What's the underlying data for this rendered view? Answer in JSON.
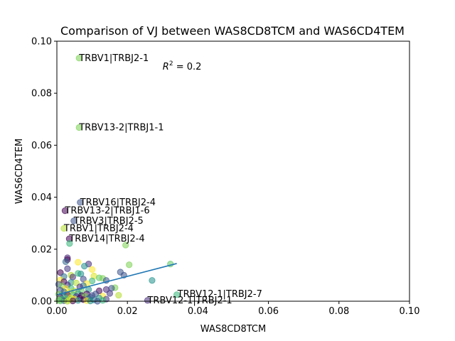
{
  "chart_data": {
    "type": "scatter",
    "title": "Comparison of VJ between WAS8CD8TCM and WAS6CD4TEM",
    "xlabel": "WAS8CD8TCM",
    "ylabel": "WAS6CD4TEM",
    "xlim": [
      0.0,
      0.1
    ],
    "ylim": [
      0.0,
      0.1
    ],
    "x_ticks": [
      "0.00",
      "0.02",
      "0.04",
      "0.06",
      "0.08",
      "0.10"
    ],
    "y_ticks": [
      "0.00",
      "0.02",
      "0.04",
      "0.06",
      "0.08",
      "0.10"
    ],
    "grid": false,
    "r2_text": "= 0.2",
    "r2_symbol": "R",
    "r2_exp": "2",
    "fit_line": {
      "x": [
        0.0,
        0.034
      ],
      "y": [
        0.0025,
        0.0145
      ],
      "color": "#1f77b4"
    },
    "annotations": [
      {
        "text": "TRBV1|TRBJ2-1",
        "x": 0.0063,
        "y": 0.0935
      },
      {
        "text": "TRBV13-2|TRBJ1-1",
        "x": 0.0063,
        "y": 0.0668
      },
      {
        "text": "TRBV16|TRBJ2-4",
        "x": 0.0066,
        "y": 0.038
      },
      {
        "text": "TRBV13-2|TRBJ1-6",
        "x": 0.0023,
        "y": 0.0348
      },
      {
        "text": "TRBV3|TRBJ2-5",
        "x": 0.0048,
        "y": 0.0309
      },
      {
        "text": "TRBV1|TRBJ2-4",
        "x": 0.002,
        "y": 0.028
      },
      {
        "text": "TRBV14|TRBJ2-4",
        "x": 0.0035,
        "y": 0.024
      },
      {
        "text": "TRBV12-1|TRBJ2-7",
        "x": 0.0342,
        "y": 0.0028
      },
      {
        "text": "TRBV12-1|TRBJ2-1",
        "x": 0.0257,
        "y": 0.0003
      }
    ],
    "r2_position": {
      "x": 0.03,
      "y": 0.0905
    },
    "points": [
      {
        "x": 0.0063,
        "y": 0.0935,
        "c": "#7ad151"
      },
      {
        "x": 0.0063,
        "y": 0.0668,
        "c": "#7ad151"
      },
      {
        "x": 0.0066,
        "y": 0.038,
        "c": "#3b528b"
      },
      {
        "x": 0.0023,
        "y": 0.0348,
        "c": "#440154"
      },
      {
        "x": 0.0048,
        "y": 0.0309,
        "c": "#3b528b"
      },
      {
        "x": 0.002,
        "y": 0.028,
        "c": "#b5de2b"
      },
      {
        "x": 0.0035,
        "y": 0.024,
        "c": "#440154"
      },
      {
        "x": 0.0036,
        "y": 0.0222,
        "c": "#35b779"
      },
      {
        "x": 0.0195,
        "y": 0.0216,
        "c": "#7ad151"
      },
      {
        "x": 0.003,
        "y": 0.0167,
        "c": "#482878"
      },
      {
        "x": 0.003,
        "y": 0.016,
        "c": "#440154"
      },
      {
        "x": 0.0025,
        "y": 0.0152,
        "c": "#31688e"
      },
      {
        "x": 0.006,
        "y": 0.015,
        "c": "#fde725"
      },
      {
        "x": 0.009,
        "y": 0.0143,
        "c": "#472d7b"
      },
      {
        "x": 0.0078,
        "y": 0.0135,
        "c": "#21918c"
      },
      {
        "x": 0.0205,
        "y": 0.014,
        "c": "#7ad151"
      },
      {
        "x": 0.0322,
        "y": 0.0143,
        "c": "#5ec962"
      },
      {
        "x": 0.003,
        "y": 0.0125,
        "c": "#443983"
      },
      {
        "x": 0.01,
        "y": 0.0122,
        "c": "#fde725"
      },
      {
        "x": 0.018,
        "y": 0.0112,
        "c": "#3b528b"
      },
      {
        "x": 0.001,
        "y": 0.011,
        "c": "#440154"
      },
      {
        "x": 0.006,
        "y": 0.0107,
        "c": "#35b779"
      },
      {
        "x": 0.0068,
        "y": 0.0105,
        "c": "#21918c"
      },
      {
        "x": 0.004,
        "y": 0.01,
        "c": "#b5de2b"
      },
      {
        "x": 0.019,
        "y": 0.01,
        "c": "#3b528b"
      },
      {
        "x": 0.0105,
        "y": 0.0097,
        "c": "#dde318"
      },
      {
        "x": 0.002,
        "y": 0.0095,
        "c": "#2c728e"
      },
      {
        "x": 0.0045,
        "y": 0.0093,
        "c": "#472c7a"
      },
      {
        "x": 0.012,
        "y": 0.009,
        "c": "#5ec962"
      },
      {
        "x": 0.013,
        "y": 0.0088,
        "c": "#7ad151"
      },
      {
        "x": 0.0075,
        "y": 0.0085,
        "c": "#3e4989"
      },
      {
        "x": 0.001,
        "y": 0.0082,
        "c": "#fde725"
      },
      {
        "x": 0.014,
        "y": 0.008,
        "c": "#3b528b"
      },
      {
        "x": 0.027,
        "y": 0.008,
        "c": "#21918c"
      },
      {
        "x": 0.01,
        "y": 0.0078,
        "c": "#35b779"
      },
      {
        "x": 0.002,
        "y": 0.0075,
        "c": "#440154"
      },
      {
        "x": 0.004,
        "y": 0.0072,
        "c": "#21918c"
      },
      {
        "x": 0.0055,
        "y": 0.007,
        "c": "#b5de2b"
      },
      {
        "x": 0.0085,
        "y": 0.0068,
        "c": "#fde725"
      },
      {
        "x": 0.0005,
        "y": 0.0065,
        "c": "#3b528b"
      },
      {
        "x": 0.003,
        "y": 0.0063,
        "c": "#482878"
      },
      {
        "x": 0.0075,
        "y": 0.006,
        "c": "#2c728e"
      },
      {
        "x": 0.0015,
        "y": 0.0058,
        "c": "#7ad151"
      },
      {
        "x": 0.0065,
        "y": 0.0055,
        "c": "#472d7b"
      },
      {
        "x": 0.0165,
        "y": 0.0052,
        "c": "#7ad151"
      },
      {
        "x": 0.0155,
        "y": 0.005,
        "c": "#3b528b"
      },
      {
        "x": 0.004,
        "y": 0.005,
        "c": "#35b779"
      },
      {
        "x": 0.0025,
        "y": 0.0048,
        "c": "#fde725"
      },
      {
        "x": 0.014,
        "y": 0.0045,
        "c": "#482878"
      },
      {
        "x": 0.009,
        "y": 0.0045,
        "c": "#21918c"
      },
      {
        "x": 0.001,
        "y": 0.0042,
        "c": "#3e4989"
      },
      {
        "x": 0.005,
        "y": 0.004,
        "c": "#b5de2b"
      },
      {
        "x": 0.012,
        "y": 0.004,
        "c": "#440154"
      },
      {
        "x": 0.007,
        "y": 0.0038,
        "c": "#5ec962"
      },
      {
        "x": 0.002,
        "y": 0.0036,
        "c": "#31688e"
      },
      {
        "x": 0.0035,
        "y": 0.0034,
        "c": "#fde725"
      },
      {
        "x": 0.015,
        "y": 0.003,
        "c": "#443983"
      },
      {
        "x": 0.006,
        "y": 0.003,
        "c": "#21918c"
      },
      {
        "x": 0.0085,
        "y": 0.0028,
        "c": "#440154"
      },
      {
        "x": 0.011,
        "y": 0.0028,
        "c": "#3b528b"
      },
      {
        "x": 0.0005,
        "y": 0.0027,
        "c": "#7ad151"
      },
      {
        "x": 0.003,
        "y": 0.0025,
        "c": "#440154"
      },
      {
        "x": 0.0045,
        "y": 0.0025,
        "c": "#35b779"
      },
      {
        "x": 0.0175,
        "y": 0.0023,
        "c": "#b5de2b"
      },
      {
        "x": 0.01,
        "y": 0.0022,
        "c": "#3e4989"
      },
      {
        "x": 0.007,
        "y": 0.0022,
        "c": "#440154"
      },
      {
        "x": 0.013,
        "y": 0.002,
        "c": "#fde725"
      },
      {
        "x": 0.002,
        "y": 0.002,
        "c": "#21918c"
      },
      {
        "x": 0.0055,
        "y": 0.0018,
        "c": "#472c7a"
      },
      {
        "x": 0.008,
        "y": 0.0018,
        "c": "#7ad151"
      },
      {
        "x": 0.034,
        "y": 0.0025,
        "c": "#35b779"
      },
      {
        "x": 0.0095,
        "y": 0.0015,
        "c": "#3b528b"
      },
      {
        "x": 0.001,
        "y": 0.0015,
        "c": "#482878"
      },
      {
        "x": 0.004,
        "y": 0.0013,
        "c": "#dde318"
      },
      {
        "x": 0.012,
        "y": 0.0012,
        "c": "#21918c"
      },
      {
        "x": 0.0065,
        "y": 0.0012,
        "c": "#440154"
      },
      {
        "x": 0.0025,
        "y": 0.001,
        "c": "#5ec962"
      },
      {
        "x": 0.009,
        "y": 0.001,
        "c": "#31688e"
      },
      {
        "x": 0.005,
        "y": 0.0008,
        "c": "#fde725"
      },
      {
        "x": 0.014,
        "y": 0.0008,
        "c": "#443983"
      },
      {
        "x": 0.0015,
        "y": 0.0007,
        "c": "#35b779"
      },
      {
        "x": 0.0075,
        "y": 0.0006,
        "c": "#440154"
      },
      {
        "x": 0.0035,
        "y": 0.0005,
        "c": "#b5de2b"
      },
      {
        "x": 0.0105,
        "y": 0.0005,
        "c": "#2c728e"
      },
      {
        "x": 0.0005,
        "y": 0.0004,
        "c": "#7ad151"
      },
      {
        "x": 0.006,
        "y": 0.0003,
        "c": "#21918c"
      },
      {
        "x": 0.013,
        "y": 0.0003,
        "c": "#35b779"
      },
      {
        "x": 0.0257,
        "y": 0.0003,
        "c": "#472d7b"
      },
      {
        "x": 0.002,
        "y": 0.0002,
        "c": "#3e4989"
      },
      {
        "x": 0.0085,
        "y": 0.0002,
        "c": "#fde725"
      },
      {
        "x": 0.0045,
        "y": 0.0001,
        "c": "#440154"
      },
      {
        "x": 0.001,
        "y": 0.0001,
        "c": "#5ec962"
      },
      {
        "x": 0.0095,
        "y": 0.0001,
        "c": "#21918c"
      },
      {
        "x": 0.003,
        "y": 0.0,
        "c": "#b5de2b"
      },
      {
        "x": 0.0115,
        "y": 0.0,
        "c": "#3b528b"
      }
    ]
  }
}
